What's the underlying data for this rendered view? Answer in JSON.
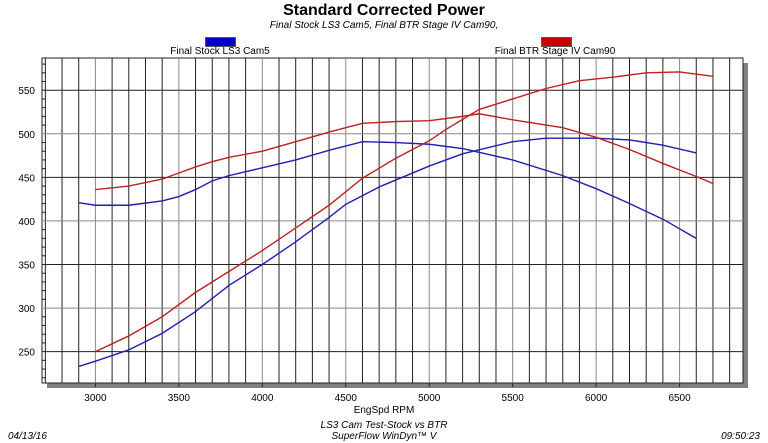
{
  "chart_data": {
    "type": "line",
    "title": "Standard Corrected Power",
    "subtitle": "Final Stock LS3 Cam5, Final BTR Stage IV Cam90,",
    "xlabel": "EngSpd RPM",
    "ylabel": "",
    "xlim": [
      2680,
      6880
    ],
    "ylim": [
      214,
      587
    ],
    "xticks": [
      3000,
      3500,
      4000,
      4500,
      5000,
      5500,
      6000,
      6500
    ],
    "yticks": [
      250,
      300,
      350,
      400,
      450,
      500,
      550
    ],
    "grid": true,
    "legend_placement": "top",
    "legend": [
      {
        "name": "Final Stock LS3 Cam5",
        "color": "#0000c8"
      },
      {
        "name": "Final BTR Stage IV Cam90",
        "color": "#c80000"
      }
    ],
    "series": [
      {
        "legend": 0,
        "color": "#1f1fb0",
        "points": [
          [
            2900,
            421
          ],
          [
            3000,
            418
          ],
          [
            3200,
            418
          ],
          [
            3400,
            423
          ],
          [
            3500,
            428
          ],
          [
            3600,
            436
          ],
          [
            3700,
            446
          ],
          [
            3800,
            452
          ],
          [
            4000,
            461
          ],
          [
            4200,
            470
          ],
          [
            4400,
            481
          ],
          [
            4600,
            491
          ],
          [
            4800,
            490
          ],
          [
            5000,
            488
          ],
          [
            5200,
            483
          ],
          [
            5500,
            470
          ],
          [
            5800,
            452
          ],
          [
            6000,
            437
          ],
          [
            6200,
            420
          ],
          [
            6400,
            402
          ],
          [
            6600,
            380
          ]
        ]
      },
      {
        "legend": 0,
        "color": "#1f1fb0",
        "points": [
          [
            2900,
            233
          ],
          [
            3000,
            239
          ],
          [
            3200,
            252
          ],
          [
            3400,
            271
          ],
          [
            3600,
            296
          ],
          [
            3800,
            326
          ],
          [
            4000,
            350
          ],
          [
            4200,
            376
          ],
          [
            4400,
            404
          ],
          [
            4500,
            419
          ],
          [
            4700,
            439
          ],
          [
            5000,
            463
          ],
          [
            5200,
            477
          ],
          [
            5500,
            491
          ],
          [
            5700,
            495
          ],
          [
            6000,
            495
          ],
          [
            6200,
            493
          ],
          [
            6400,
            487
          ],
          [
            6600,
            478
          ]
        ]
      },
      {
        "legend": 1,
        "color": "#c02020",
        "points": [
          [
            3000,
            436
          ],
          [
            3200,
            440
          ],
          [
            3400,
            448
          ],
          [
            3500,
            455
          ],
          [
            3600,
            462
          ],
          [
            3700,
            468
          ],
          [
            3800,
            473
          ],
          [
            4000,
            480
          ],
          [
            4200,
            491
          ],
          [
            4400,
            502
          ],
          [
            4600,
            512
          ],
          [
            4800,
            514
          ],
          [
            5000,
            515
          ],
          [
            5200,
            520
          ],
          [
            5300,
            523
          ],
          [
            5500,
            516
          ],
          [
            5800,
            507
          ],
          [
            6000,
            496
          ],
          [
            6200,
            482
          ],
          [
            6400,
            466
          ],
          [
            6600,
            451
          ],
          [
            6700,
            443
          ]
        ]
      },
      {
        "legend": 1,
        "color": "#c02020",
        "points": [
          [
            3000,
            250
          ],
          [
            3200,
            268
          ],
          [
            3400,
            290
          ],
          [
            3600,
            318
          ],
          [
            3800,
            342
          ],
          [
            4000,
            366
          ],
          [
            4200,
            392
          ],
          [
            4400,
            418
          ],
          [
            4600,
            449
          ],
          [
            4800,
            472
          ],
          [
            5000,
            492
          ],
          [
            5100,
            505
          ],
          [
            5300,
            528
          ],
          [
            5500,
            540
          ],
          [
            5700,
            552
          ],
          [
            5900,
            561
          ],
          [
            6100,
            565
          ],
          [
            6300,
            570
          ],
          [
            6500,
            571
          ],
          [
            6700,
            566
          ]
        ]
      }
    ]
  },
  "footer": {
    "date": "04/13/16",
    "test_name": "LS3 Cam Test-Stock vs BTR",
    "software": "SuperFlow WinDyn™ V",
    "time": "09:50:23"
  }
}
